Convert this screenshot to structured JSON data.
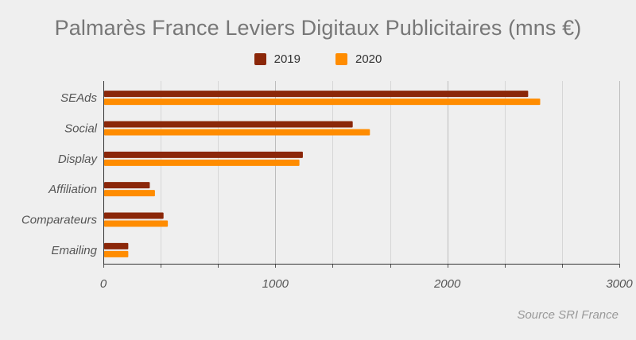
{
  "chart_data": {
    "type": "bar",
    "orientation": "horizontal",
    "title": "Palmarès France Leviers Digitaux Publicitaires (mns €)",
    "categories": [
      "SEAds",
      "Social",
      "Display",
      "Affiliation",
      "Comparateurs",
      "Emailing"
    ],
    "series": [
      {
        "name": "2019",
        "color": "#8b2709",
        "values": [
          2470,
          1450,
          1160,
          270,
          350,
          145
        ]
      },
      {
        "name": "2020",
        "color": "#ff8c00",
        "values": [
          2540,
          1550,
          1140,
          300,
          375,
          145
        ]
      }
    ],
    "xlim": [
      0,
      3000
    ],
    "x_ticks": [
      0,
      1000,
      2000,
      3000
    ],
    "x_tick_labels": [
      "0",
      "1000",
      "2000",
      "3000"
    ],
    "grid": true,
    "legend_position": "top-center",
    "source": "Source SRI France"
  }
}
